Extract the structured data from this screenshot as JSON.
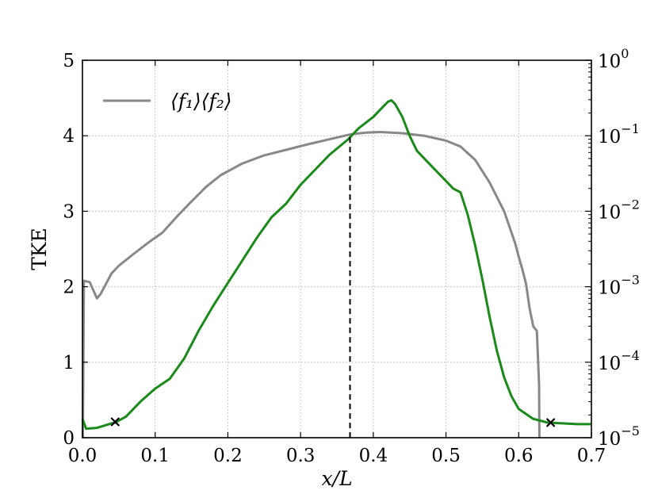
{
  "chart_data": {
    "type": "line",
    "xlabel": "x/L",
    "ylabel": "TKE",
    "xlim": [
      0.0,
      0.7
    ],
    "ylim": [
      0,
      5
    ],
    "y2lim": [
      1e-05,
      1
    ],
    "y2scale": "log",
    "grid": true,
    "legend": "top-left",
    "x_ticks": [
      "0.0",
      "0.1",
      "0.2",
      "0.3",
      "0.4",
      "0.5",
      "0.6",
      "0.7"
    ],
    "y_ticks": [
      "0",
      "1",
      "2",
      "3",
      "4",
      "5"
    ],
    "y2_ticks": [
      {
        "base": "10",
        "exp": "−5"
      },
      {
        "base": "10",
        "exp": "−4"
      },
      {
        "base": "10",
        "exp": "−3"
      },
      {
        "base": "10",
        "exp": "−2"
      },
      {
        "base": "10",
        "exp": "−1"
      },
      {
        "base": "10",
        "exp": "0"
      }
    ],
    "legend_entry": "⟨f₁⟩⟨f₂⟩",
    "series": [
      {
        "name": "⟨f₁⟩⟨f₂⟩",
        "axis": "right",
        "color": "#888888",
        "x": [
          0.0005,
          0.002,
          0.01,
          0.02,
          0.025,
          0.04,
          0.05,
          0.07,
          0.09,
          0.11,
          0.13,
          0.15,
          0.17,
          0.19,
          0.22,
          0.25,
          0.28,
          0.31,
          0.34,
          0.37,
          0.39,
          0.41,
          0.44,
          0.47,
          0.5,
          0.52,
          0.54,
          0.56,
          0.58,
          0.595,
          0.6,
          0.605,
          0.61,
          0.615,
          0.62,
          0.625,
          0.628,
          0.6285
        ],
        "y": [
          1e-05,
          0.0012,
          0.00115,
          0.0007,
          0.0008,
          0.0015,
          0.0019,
          0.0027,
          0.0038,
          0.0052,
          0.0085,
          0.0135,
          0.021,
          0.03,
          0.043,
          0.055,
          0.065,
          0.077,
          0.09,
          0.105,
          0.11,
          0.112,
          0.108,
          0.1,
          0.086,
          0.072,
          0.048,
          0.024,
          0.01,
          0.0038,
          0.0025,
          0.0017,
          0.0011,
          0.00052,
          0.0003,
          0.00026,
          5e-05,
          1e-05
        ]
      },
      {
        "name": "TKE",
        "axis": "left",
        "color": "#1a8a1a",
        "x": [
          0.0,
          0.005,
          0.02,
          0.04,
          0.045,
          0.06,
          0.08,
          0.1,
          0.12,
          0.14,
          0.16,
          0.18,
          0.2,
          0.22,
          0.24,
          0.26,
          0.28,
          0.3,
          0.32,
          0.34,
          0.365,
          0.38,
          0.4,
          0.41,
          0.42,
          0.425,
          0.43,
          0.44,
          0.45,
          0.46,
          0.48,
          0.5,
          0.51,
          0.52,
          0.53,
          0.54,
          0.55,
          0.56,
          0.57,
          0.58,
          0.59,
          0.6,
          0.62,
          0.64,
          0.66,
          0.68,
          0.7
        ],
        "y": [
          0.25,
          0.12,
          0.13,
          0.19,
          0.2,
          0.28,
          0.48,
          0.65,
          0.78,
          1.05,
          1.42,
          1.75,
          2.05,
          2.35,
          2.65,
          2.92,
          3.1,
          3.35,
          3.55,
          3.75,
          3.95,
          4.1,
          4.25,
          4.35,
          4.45,
          4.47,
          4.42,
          4.25,
          4.0,
          3.8,
          3.6,
          3.4,
          3.3,
          3.25,
          2.95,
          2.55,
          2.1,
          1.6,
          1.15,
          0.8,
          0.55,
          0.38,
          0.25,
          0.2,
          0.19,
          0.18,
          0.18
        ]
      }
    ],
    "markers": [
      {
        "x": 0.045,
        "y": 0.21
      },
      {
        "x": 0.644,
        "y": 0.2
      }
    ],
    "vline_x": 0.368
  }
}
